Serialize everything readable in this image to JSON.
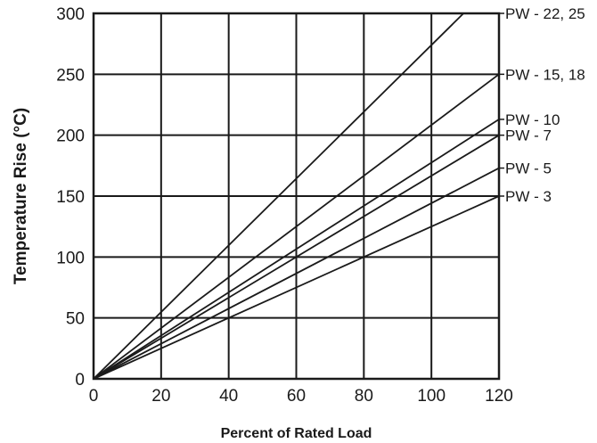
{
  "chart_data": {
    "type": "line",
    "title": "",
    "xlabel": "Percent of Rated Load",
    "ylabel": "Temperature Rise (°C)",
    "xlim": [
      0,
      120
    ],
    "ylim": [
      0,
      300
    ],
    "x_ticks": [
      0,
      20,
      40,
      60,
      80,
      100,
      120
    ],
    "y_ticks": [
      0,
      50,
      100,
      150,
      200,
      250,
      300
    ],
    "grid": true,
    "legend": "direct labels at right",
    "series": [
      {
        "name": "PW - 22, 25",
        "x": [
          0,
          109.5
        ],
        "y": [
          0,
          300
        ]
      },
      {
        "name": "PW - 15, 18",
        "x": [
          0,
          120
        ],
        "y": [
          0,
          250
        ]
      },
      {
        "name": "PW - 10",
        "x": [
          0,
          120
        ],
        "y": [
          0,
          213
        ]
      },
      {
        "name": "PW - 7",
        "x": [
          0,
          120
        ],
        "y": [
          0,
          200
        ]
      },
      {
        "name": "PW - 5",
        "x": [
          0,
          120
        ],
        "y": [
          0,
          173
        ]
      },
      {
        "name": "PW - 3",
        "x": [
          0,
          120
        ],
        "y": [
          0,
          150
        ]
      }
    ],
    "label_values": [
      300,
      250,
      213,
      200,
      173,
      150
    ]
  }
}
